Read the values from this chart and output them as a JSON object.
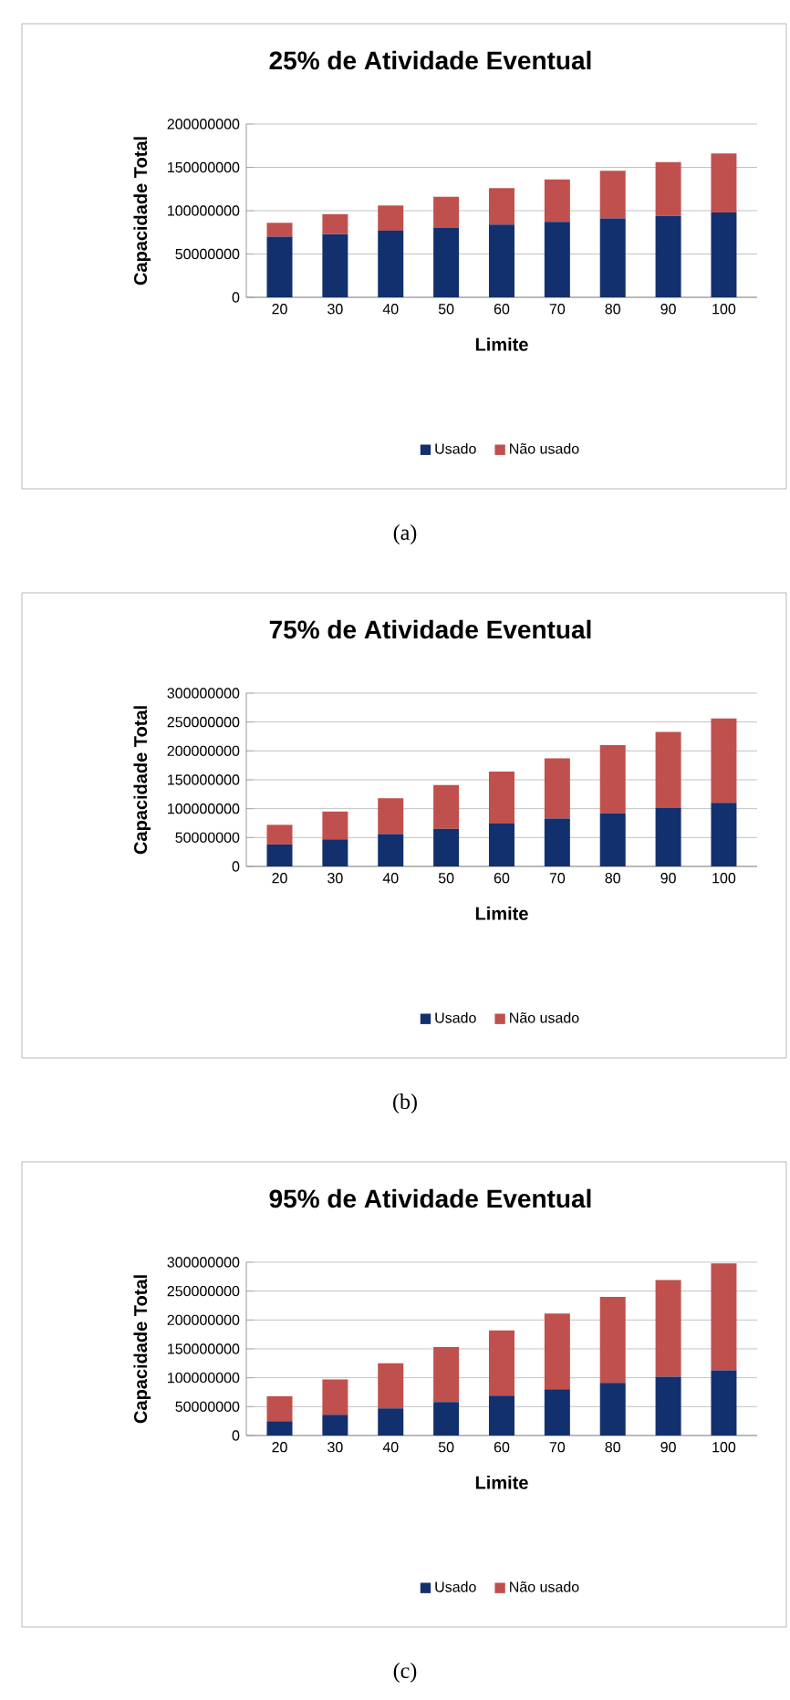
{
  "chart_data": [
    {
      "type": "bar",
      "title": "25% de Atividade Eventual",
      "xlabel": "Limite",
      "ylabel": "Capacidade Total",
      "categories": [
        "20",
        "30",
        "40",
        "50",
        "60",
        "70",
        "80",
        "90",
        "100"
      ],
      "stacked": true,
      "series": [
        {
          "name": "Usado",
          "color": "#12306e",
          "values": [
            70000000,
            73000000,
            77000000,
            80000000,
            84000000,
            87000000,
            91000000,
            94000000,
            98000000
          ]
        },
        {
          "name": "Não usado",
          "color": "#c0504d",
          "values": [
            16000000,
            23000000,
            29000000,
            36000000,
            42000000,
            49000000,
            55000000,
            62000000,
            68000000
          ]
        }
      ],
      "ylim": [
        0,
        200000000
      ],
      "yticks": [
        0,
        50000000,
        100000000,
        150000000,
        200000000
      ],
      "grid": "y",
      "legend": "bottom",
      "annotations": [
        "(a)"
      ]
    },
    {
      "type": "bar",
      "title": "75% de Atividade Eventual",
      "xlabel": "Limite",
      "ylabel": "Capacidade Total",
      "categories": [
        "20",
        "30",
        "40",
        "50",
        "60",
        "70",
        "80",
        "90",
        "100"
      ],
      "stacked": true,
      "series": [
        {
          "name": "Usado",
          "color": "#12306e",
          "values": [
            38000000,
            47000000,
            56000000,
            65000000,
            74000000,
            83000000,
            92000000,
            101000000,
            110000000
          ]
        },
        {
          "name": "Não usado",
          "color": "#c0504d",
          "values": [
            34000000,
            48000000,
            62000000,
            76000000,
            90000000,
            104000000,
            118000000,
            132000000,
            146000000
          ]
        }
      ],
      "ylim": [
        0,
        300000000
      ],
      "yticks": [
        0,
        50000000,
        100000000,
        150000000,
        200000000,
        250000000,
        300000000
      ],
      "grid": "y",
      "legend": "bottom",
      "annotations": [
        "(b)"
      ]
    },
    {
      "type": "bar",
      "title": "95% de Atividade Eventual",
      "xlabel": "Limite",
      "ylabel": "Capacidade Total",
      "categories": [
        "20",
        "30",
        "40",
        "50",
        "60",
        "70",
        "80",
        "90",
        "100"
      ],
      "stacked": true,
      "series": [
        {
          "name": "Usado",
          "color": "#12306e",
          "values": [
            25000000,
            36000000,
            47000000,
            58000000,
            69000000,
            80000000,
            91000000,
            102000000,
            113000000
          ]
        },
        {
          "name": "Não usado",
          "color": "#c0504d",
          "values": [
            43000000,
            61000000,
            78000000,
            95000000,
            113000000,
            131000000,
            149000000,
            167000000,
            185000000
          ]
        }
      ],
      "ylim": [
        0,
        300000000
      ],
      "yticks": [
        0,
        50000000,
        100000000,
        150000000,
        200000000,
        250000000,
        300000000
      ],
      "grid": "y",
      "legend": "bottom",
      "annotations": [
        "(c)"
      ]
    }
  ]
}
